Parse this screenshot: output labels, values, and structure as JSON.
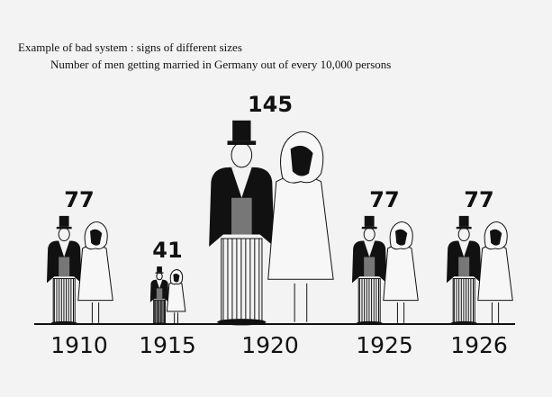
{
  "chart_data": {
    "type": "pictogram",
    "title": "Example of bad system :  signs of different sizes",
    "subtitle": "Number of men getting married in Germany out of every 10,000 persons",
    "categories": [
      "1910",
      "1915",
      "1920",
      "1925",
      "1926"
    ],
    "values": [
      77,
      41,
      145,
      77,
      77
    ],
    "color": "#111111"
  }
}
